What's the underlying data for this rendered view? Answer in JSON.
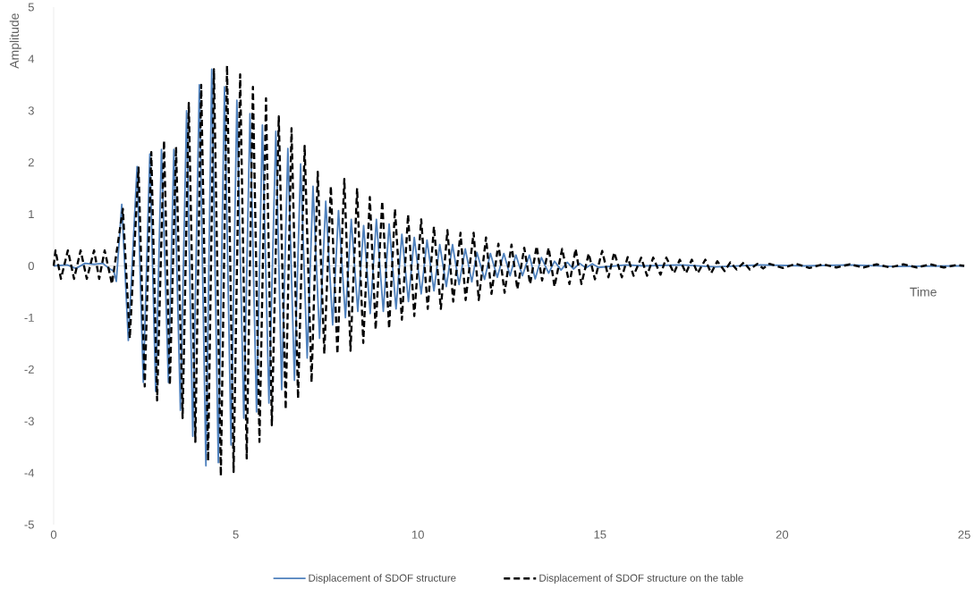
{
  "chart_data": {
    "type": "line",
    "xlabel": "Time",
    "ylabel": "Amplitude",
    "xlim": [
      0,
      25
    ],
    "ylim": [
      -5,
      5
    ],
    "xticks": [
      0,
      5,
      10,
      15,
      20,
      25
    ],
    "yticks": [
      -5,
      -4,
      -3,
      -2,
      -1,
      0,
      1,
      2,
      3,
      4,
      5
    ],
    "legend": "bottom",
    "series": [
      {
        "name": "Displacement of SDOF structure",
        "color": "#4f81bd",
        "line_style": "solid",
        "x": [
          0,
          0.37,
          0.61,
          0.86,
          1.11,
          1.35,
          1.52,
          1.65,
          1.72,
          1.87,
          2.05,
          2.29,
          2.46,
          2.64,
          2.8,
          2.96,
          3.15,
          3.3,
          3.48,
          3.65,
          3.82,
          4.0,
          4.18,
          4.34,
          4.52,
          4.69,
          4.87,
          5.03,
          5.22,
          5.39,
          5.57,
          5.73,
          5.91,
          6.1,
          6.26,
          6.43,
          6.61,
          6.78,
          6.96,
          7.12,
          7.3,
          7.47,
          7.66,
          7.82,
          8.01,
          8.17,
          8.35,
          8.51,
          8.69,
          8.86,
          9.05,
          9.21,
          9.4,
          9.56,
          9.74,
          9.9,
          10.09,
          10.25,
          10.44,
          10.6,
          10.78,
          10.95,
          11.13,
          11.3,
          11.48,
          11.62,
          11.83,
          11.99,
          12.18,
          12.36,
          12.53,
          12.69,
          12.87,
          13.06,
          13.22,
          13.39,
          13.59,
          13.75,
          13.93,
          14.1,
          14.27,
          14.44,
          14.61,
          14.79,
          14.96,
          15.72,
          16.21,
          17.19,
          18.17,
          19.4,
          20.63,
          21.86,
          23.09,
          25
        ],
        "values": [
          0,
          0.02,
          -0.05,
          0.05,
          0.03,
          0.05,
          -0.05,
          -0.1,
          -0.3,
          1.19,
          -1.44,
          1.92,
          -2.25,
          2.16,
          -2.42,
          2.25,
          -2.25,
          2.25,
          -2.79,
          3.0,
          -3.29,
          3.5,
          -3.86,
          3.8,
          -3.8,
          3.46,
          -3.46,
          3.2,
          -2.94,
          2.94,
          -2.82,
          2.72,
          -2.65,
          2.6,
          -2.39,
          2.27,
          -2.21,
          1.97,
          -1.78,
          1.54,
          -1.4,
          1.25,
          -1.14,
          1.07,
          -1.0,
          0.9,
          -0.88,
          0.78,
          -0.92,
          0.9,
          -0.88,
          0.81,
          -0.83,
          0.61,
          -0.69,
          0.55,
          -0.54,
          0.5,
          -0.48,
          0.41,
          -0.4,
          0.41,
          -0.36,
          0.33,
          -0.31,
          0.26,
          -0.26,
          0.24,
          -0.22,
          0.24,
          -0.19,
          0.21,
          -0.19,
          0.21,
          -0.25,
          0.16,
          -0.14,
          0.09,
          -0.08,
          0.07,
          -0.06,
          0.05,
          -0.04,
          0.04,
          -0.03,
          0.02,
          0,
          0.02,
          -0.02,
          0.02,
          0,
          0.02,
          -0.01,
          0
        ]
      },
      {
        "name": "Displacement of SDOF structure on the table",
        "color": "#000000",
        "line_style": "dashed",
        "x": [
          0,
          0.05,
          0.2,
          0.39,
          0.56,
          0.74,
          0.91,
          1.11,
          1.25,
          1.4,
          1.6,
          1.9,
          2.09,
          2.33,
          2.5,
          2.68,
          2.84,
          3.03,
          3.19,
          3.36,
          3.54,
          3.71,
          3.89,
          4.05,
          4.24,
          4.4,
          4.59,
          4.76,
          4.94,
          5.12,
          5.3,
          5.47,
          5.65,
          5.83,
          5.99,
          6.18,
          6.37,
          6.53,
          6.71,
          6.89,
          7.08,
          7.25,
          7.43,
          7.61,
          7.79,
          7.98,
          8.15,
          8.33,
          8.5,
          8.68,
          8.84,
          9.02,
          9.21,
          9.37,
          9.56,
          9.73,
          9.9,
          10.09,
          10.27,
          10.44,
          10.63,
          10.81,
          10.97,
          11.17,
          11.31,
          11.53,
          11.67,
          11.87,
          12.02,
          12.21,
          12.38,
          12.57,
          12.73,
          12.92,
          13.08,
          13.26,
          13.41,
          13.59,
          13.75,
          13.96,
          14.16,
          14.33,
          14.49,
          14.69,
          14.86,
          15.06,
          15.23,
          15.39,
          15.6,
          15.76,
          15.92,
          16.13,
          16.29,
          16.46,
          16.66,
          16.82,
          17.03,
          17.19,
          17.36,
          17.52,
          17.68,
          17.89,
          18.05,
          18.22,
          18.42,
          18.58,
          18.75,
          18.95,
          19.11,
          19.32,
          19.48,
          19.65,
          20.02,
          20.38,
          20.75,
          21.12,
          21.49,
          21.86,
          22.23,
          22.6,
          22.96,
          23.33,
          23.7,
          24.07,
          24.44,
          24.8,
          25
        ],
        "values": [
          0,
          0.3,
          -0.25,
          0.3,
          -0.25,
          0.3,
          -0.25,
          0.3,
          -0.25,
          0.3,
          -0.35,
          1.1,
          -1.4,
          1.9,
          -2.33,
          2.2,
          -2.6,
          2.42,
          -2.3,
          2.3,
          -2.94,
          3.15,
          -3.4,
          3.5,
          -3.77,
          3.8,
          -4.06,
          3.87,
          -3.98,
          3.7,
          -3.72,
          3.46,
          -3.4,
          3.24,
          -3.08,
          2.89,
          -2.77,
          2.66,
          -2.56,
          2.32,
          -2.25,
          1.82,
          -1.7,
          1.54,
          -1.7,
          1.68,
          -1.64,
          1.5,
          -1.49,
          1.33,
          -1.23,
          1.25,
          -1.21,
          1.1,
          -1.04,
          0.99,
          -0.97,
          0.9,
          -0.83,
          0.76,
          -0.83,
          0.69,
          -0.69,
          0.64,
          -0.66,
          0.64,
          -0.66,
          0.55,
          -0.54,
          0.43,
          -0.52,
          0.41,
          -0.45,
          0.35,
          -0.35,
          0.38,
          -0.28,
          0.35,
          -0.4,
          0.33,
          -0.35,
          0.33,
          -0.35,
          0.24,
          -0.26,
          0.29,
          -0.22,
          0.26,
          -0.22,
          0.17,
          -0.19,
          0.16,
          -0.19,
          0.16,
          -0.17,
          0.16,
          -0.14,
          0.12,
          -0.14,
          0.12,
          -0.14,
          0.12,
          -0.14,
          0.09,
          -0.1,
          0.07,
          -0.07,
          0.07,
          -0.07,
          0.04,
          -0.05,
          0.04,
          -0.04,
          0.04,
          -0.04,
          0.03,
          -0.03,
          0.03,
          -0.03,
          0.03,
          -0.03,
          0.03,
          -0.03,
          0.03,
          -0.03,
          0.02,
          0
        ]
      }
    ]
  }
}
